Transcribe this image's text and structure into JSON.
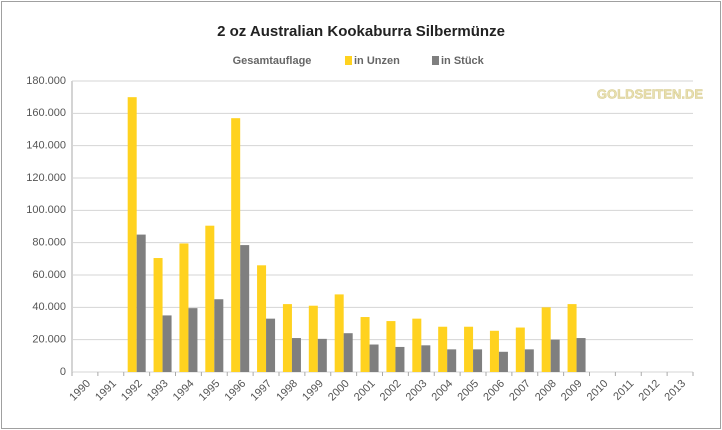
{
  "chart_data": {
    "type": "bar",
    "title": "2 oz Australian Kookaburra Silbermünze",
    "legend_title": "Gesamtauflage",
    "watermark": "GOLDSEITEN.DE",
    "categories": [
      "1990",
      "1991",
      "1992",
      "1993",
      "1994",
      "1995",
      "1996",
      "1997",
      "1998",
      "1999",
      "2000",
      "2001",
      "2002",
      "2003",
      "2004",
      "2005",
      "2006",
      "2007",
      "2008",
      "2009",
      "2010",
      "2011",
      "2012",
      "2013"
    ],
    "series": [
      {
        "name": "in Unzen",
        "color": "#ffd21f",
        "values": [
          null,
          null,
          170000,
          70500,
          79500,
          90500,
          157000,
          66000,
          42000,
          41000,
          48000,
          34000,
          31500,
          33000,
          28000,
          28000,
          25500,
          27500,
          40000,
          42000,
          null,
          null,
          null,
          null
        ]
      },
      {
        "name": "in Stück",
        "color": "#7f7f7f",
        "values": [
          null,
          null,
          85000,
          35000,
          39500,
          45000,
          78500,
          33000,
          21000,
          20500,
          24000,
          17000,
          15500,
          16500,
          14000,
          14000,
          12500,
          14000,
          20000,
          21000,
          null,
          null,
          null,
          null
        ]
      }
    ],
    "ylim": [
      0,
      180000
    ],
    "yticks": [
      0,
      {
        "value": 20000,
        "label": "20.000"
      },
      {
        "value": 40000,
        "label": "40.000"
      },
      {
        "value": 60000,
        "label": "60.000"
      },
      {
        "value": 80000,
        "label": "80.000"
      },
      {
        "value": 100000,
        "label": "100.000"
      },
      {
        "value": 120000,
        "label": "120.000"
      },
      {
        "value": 140000,
        "label": "140.000"
      },
      {
        "value": 160000,
        "label": "160.000"
      },
      {
        "value": 180000,
        "label": "180.000"
      }
    ],
    "grid": true
  }
}
